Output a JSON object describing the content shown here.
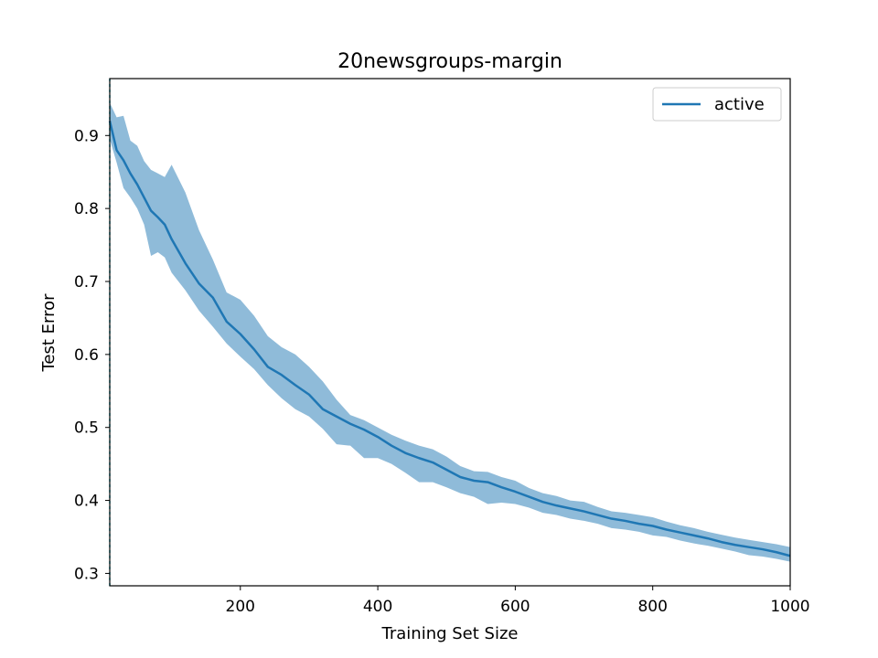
{
  "chart_data": {
    "type": "line",
    "title": "20newsgroups-margin",
    "xlabel": "Training Set Size",
    "ylabel": "Test Error",
    "xlim": [
      10,
      1000
    ],
    "ylim": [
      0.283,
      0.978
    ],
    "xticks": [
      200,
      400,
      600,
      800,
      1000
    ],
    "yticks": [
      0.3,
      0.4,
      0.5,
      0.6,
      0.7,
      0.8,
      0.9
    ],
    "grid": false,
    "legend_position": "top-right",
    "colors": {
      "line": "#1f77b4",
      "band": "#1f77b4",
      "band_opacity": 0.5,
      "vline": "#17becf"
    },
    "reference_line_x": 10,
    "series": [
      {
        "name": "active",
        "x": [
          10,
          20,
          30,
          40,
          50,
          60,
          70,
          80,
          90,
          100,
          120,
          140,
          160,
          180,
          200,
          220,
          240,
          260,
          280,
          300,
          320,
          340,
          360,
          380,
          400,
          420,
          440,
          460,
          480,
          500,
          520,
          540,
          560,
          580,
          600,
          620,
          640,
          660,
          680,
          700,
          720,
          740,
          760,
          780,
          800,
          820,
          840,
          860,
          880,
          900,
          920,
          940,
          960,
          980,
          1000
        ],
        "y": [
          0.92,
          0.88,
          0.866,
          0.848,
          0.833,
          0.815,
          0.797,
          0.788,
          0.778,
          0.758,
          0.725,
          0.697,
          0.678,
          0.645,
          0.628,
          0.607,
          0.583,
          0.572,
          0.558,
          0.545,
          0.525,
          0.515,
          0.505,
          0.497,
          0.487,
          0.475,
          0.465,
          0.458,
          0.452,
          0.442,
          0.432,
          0.427,
          0.425,
          0.418,
          0.412,
          0.405,
          0.398,
          0.393,
          0.389,
          0.385,
          0.38,
          0.375,
          0.372,
          0.368,
          0.365,
          0.36,
          0.356,
          0.352,
          0.348,
          0.343,
          0.339,
          0.336,
          0.333,
          0.329,
          0.324
        ],
        "upper": [
          0.945,
          0.925,
          0.927,
          0.893,
          0.886,
          0.865,
          0.853,
          0.848,
          0.843,
          0.86,
          0.822,
          0.77,
          0.73,
          0.685,
          0.675,
          0.653,
          0.625,
          0.61,
          0.6,
          0.583,
          0.563,
          0.538,
          0.517,
          0.51,
          0.5,
          0.49,
          0.482,
          0.475,
          0.47,
          0.46,
          0.447,
          0.44,
          0.439,
          0.432,
          0.427,
          0.417,
          0.41,
          0.406,
          0.4,
          0.398,
          0.391,
          0.385,
          0.383,
          0.38,
          0.377,
          0.371,
          0.366,
          0.362,
          0.357,
          0.353,
          0.349,
          0.346,
          0.343,
          0.34,
          0.336
        ],
        "lower": [
          0.895,
          0.863,
          0.828,
          0.815,
          0.8,
          0.778,
          0.735,
          0.74,
          0.733,
          0.712,
          0.688,
          0.66,
          0.638,
          0.615,
          0.597,
          0.58,
          0.558,
          0.54,
          0.525,
          0.515,
          0.498,
          0.477,
          0.475,
          0.458,
          0.458,
          0.45,
          0.438,
          0.425,
          0.425,
          0.418,
          0.41,
          0.405,
          0.395,
          0.397,
          0.395,
          0.39,
          0.383,
          0.38,
          0.375,
          0.372,
          0.368,
          0.362,
          0.36,
          0.357,
          0.352,
          0.35,
          0.345,
          0.341,
          0.338,
          0.334,
          0.33,
          0.325,
          0.323,
          0.32,
          0.316
        ]
      }
    ]
  }
}
